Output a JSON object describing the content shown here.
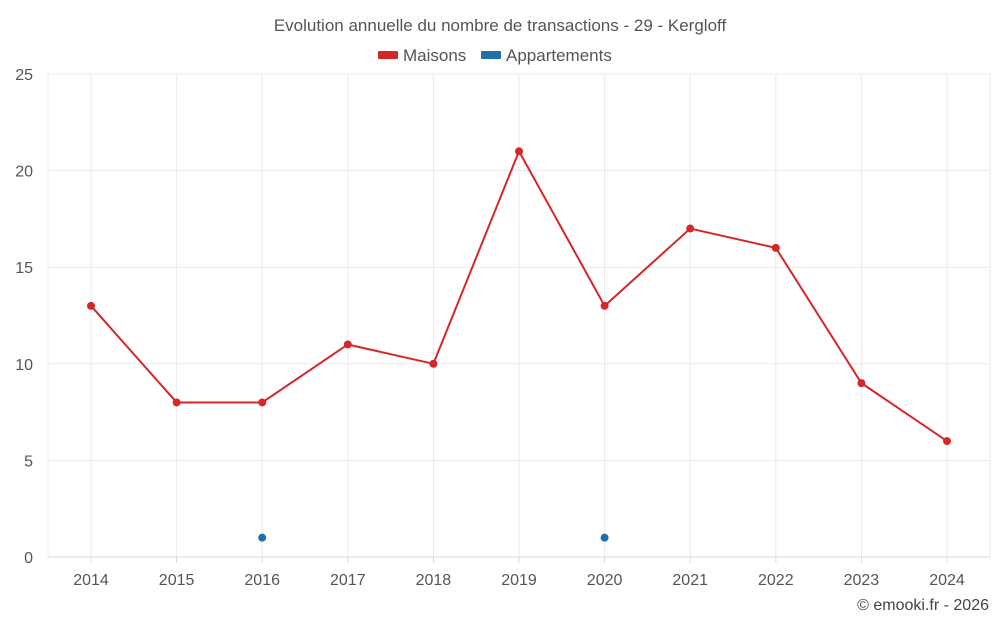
{
  "chart_data": {
    "type": "line",
    "title": "Evolution annuelle du nombre de transactions - 29 - Kergloff",
    "categories": [
      "2014",
      "2015",
      "2016",
      "2017",
      "2018",
      "2019",
      "2020",
      "2021",
      "2022",
      "2023",
      "2024"
    ],
    "series": [
      {
        "name": "Maisons",
        "color": "#d62728",
        "values": [
          13,
          8,
          8,
          11,
          10,
          21,
          13,
          17,
          16,
          9,
          6
        ]
      },
      {
        "name": "Appartements",
        "color": "#1f6fa8",
        "values": [
          null,
          null,
          1,
          null,
          null,
          null,
          1,
          null,
          null,
          null,
          null
        ]
      }
    ],
    "yticks": [
      "0",
      "5",
      "10",
      "15",
      "20",
      "25"
    ],
    "ylim": [
      0,
      25
    ],
    "grid": true,
    "legend_position": "top-center",
    "credit": "© emooki.fr - 2026"
  }
}
